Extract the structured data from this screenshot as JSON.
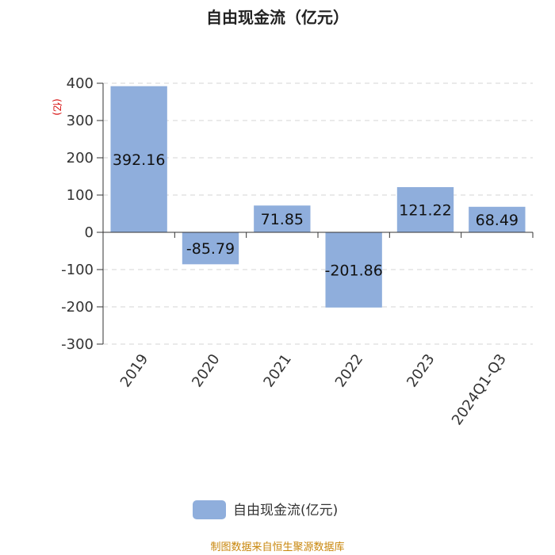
{
  "chart_data": {
    "type": "bar",
    "title": "自由现金流（亿元）",
    "ylabel": "(亿)",
    "categories": [
      "2019",
      "2020",
      "2021",
      "2022",
      "2023",
      "2024Q1-Q3"
    ],
    "series": [
      {
        "name": "自由现金流(亿元)",
        "values": [
          392.16,
          -85.79,
          71.85,
          -201.86,
          121.22,
          68.49
        ]
      }
    ],
    "data_labels": [
      "392.16",
      "-85.79",
      "71.85",
      "-201.86",
      "121.22",
      "68.49"
    ],
    "ylim": [
      -300,
      400
    ],
    "yticks": [
      400,
      300,
      200,
      100,
      0,
      -100,
      -200,
      -300
    ],
    "ytick_labels": [
      "400",
      "300",
      "200",
      "100",
      "0",
      "-100",
      "-200",
      "-300"
    ],
    "grid": true,
    "legend": "bottom-center",
    "bar_color": "#8faedc"
  },
  "legend": {
    "label": "自由现金流(亿元)"
  },
  "source": "制图数据来自恒生聚源数据库"
}
